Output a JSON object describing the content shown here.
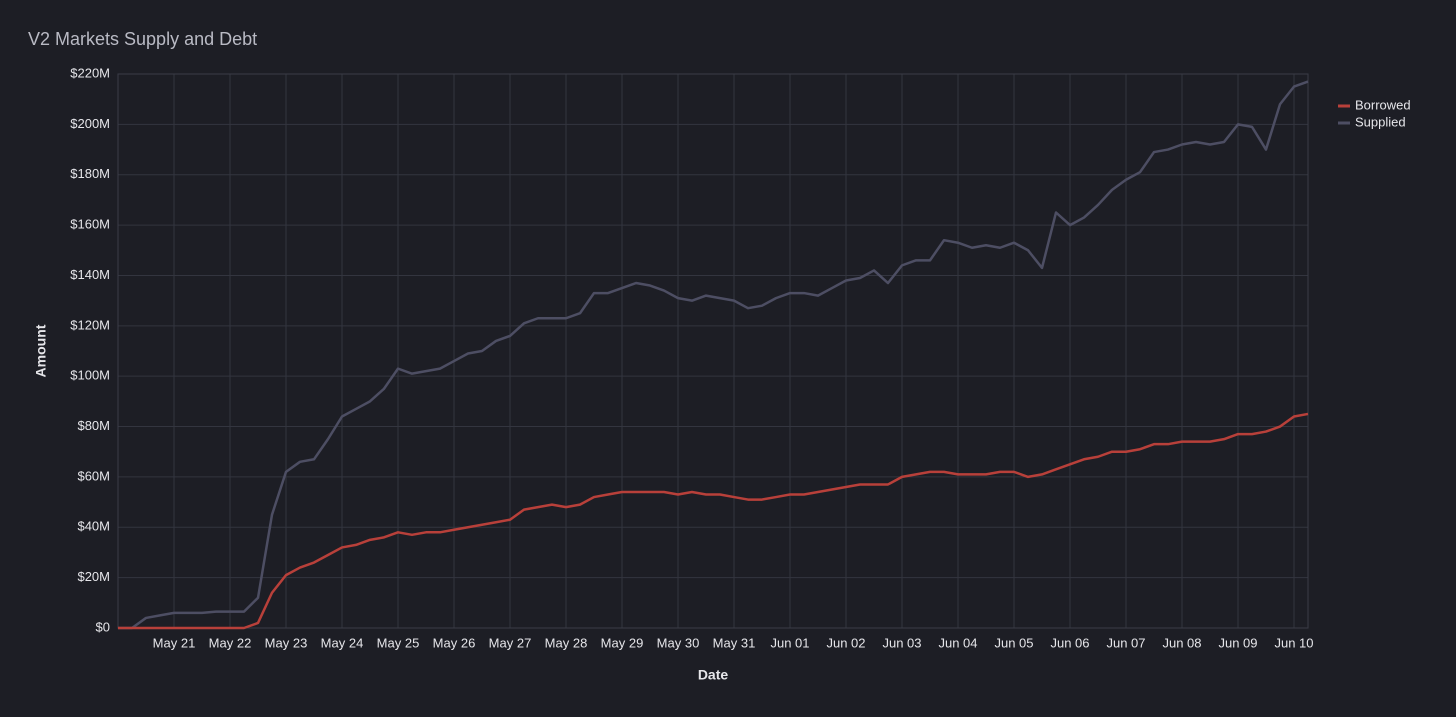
{
  "chart_data": {
    "type": "line",
    "title": "V2 Markets Supply and Debt",
    "x_label": "Date",
    "y_label": "Amount",
    "categories": [
      null,
      null,
      null,
      null,
      "May 21",
      null,
      null,
      null,
      "May 22",
      null,
      null,
      null,
      "May 23",
      null,
      null,
      null,
      "May 24",
      null,
      null,
      null,
      "May 25",
      null,
      null,
      null,
      "May 26",
      null,
      null,
      null,
      "May 27",
      null,
      null,
      null,
      "May 28",
      null,
      null,
      null,
      "May 29",
      null,
      null,
      null,
      "May 30",
      null,
      null,
      null,
      "May 31",
      null,
      null,
      null,
      "Jun 01",
      null,
      null,
      null,
      "Jun 02",
      null,
      null,
      null,
      "Jun 03",
      null,
      null,
      null,
      "Jun 04",
      null,
      null,
      null,
      "Jun 05",
      null,
      null,
      null,
      "Jun 06",
      null,
      null,
      null,
      "Jun 07",
      null,
      null,
      null,
      "Jun 08",
      null,
      null,
      null,
      "Jun 09",
      null,
      null,
      null,
      "Jun 10",
      null
    ],
    "series": [
      {
        "name": "Borrowed",
        "color": "#b8403a",
        "values": [
          0,
          0,
          0,
          0,
          0,
          0,
          0,
          0,
          0,
          0,
          2,
          14,
          21,
          24,
          26,
          29,
          32,
          33,
          35,
          36,
          38,
          37,
          38,
          38,
          39,
          40,
          41,
          42,
          43,
          47,
          48,
          49,
          48,
          49,
          52,
          53,
          54,
          54,
          54,
          54,
          53,
          54,
          53,
          53,
          52,
          51,
          51,
          52,
          53,
          53,
          54,
          55,
          56,
          57,
          57,
          57,
          60,
          61,
          62,
          62,
          61,
          61,
          61,
          62,
          62,
          60,
          61,
          63,
          65,
          67,
          68,
          70,
          70,
          71,
          73,
          73,
          74,
          74,
          74,
          75,
          77,
          77,
          78,
          80,
          84,
          85
        ]
      },
      {
        "name": "Supplied",
        "color": "#4d4e63",
        "values": [
          0,
          0,
          4,
          5,
          6,
          6,
          6,
          6.5,
          6.5,
          6.5,
          12,
          45,
          62,
          66,
          67,
          75,
          84,
          87,
          90,
          95,
          103,
          101,
          102,
          103,
          106,
          109,
          110,
          114,
          116,
          121,
          123,
          123,
          123,
          125,
          133,
          133,
          135,
          137,
          136,
          134,
          131,
          130,
          132,
          131,
          130,
          127,
          128,
          131,
          133,
          133,
          132,
          135,
          138,
          139,
          142,
          137,
          144,
          146,
          146,
          154,
          153,
          151,
          152,
          151,
          153,
          150,
          143,
          165,
          160,
          163,
          168,
          174,
          178,
          181,
          189,
          190,
          192,
          193,
          192,
          193,
          200,
          199,
          190,
          208,
          215,
          217
        ]
      }
    ],
    "ylim": [
      0,
      220
    ],
    "yticks": [
      {
        "value": 0,
        "label": "$0"
      },
      {
        "value": 20,
        "label": "$20M"
      },
      {
        "value": 40,
        "label": "$40M"
      },
      {
        "value": 60,
        "label": "$60M"
      },
      {
        "value": 80,
        "label": "$80M"
      },
      {
        "value": 100,
        "label": "$100M"
      },
      {
        "value": 120,
        "label": "$120M"
      },
      {
        "value": 140,
        "label": "$140M"
      },
      {
        "value": 160,
        "label": "$160M"
      },
      {
        "value": 180,
        "label": "$180M"
      },
      {
        "value": 200,
        "label": "$200M"
      },
      {
        "value": 220,
        "label": "$220M"
      }
    ],
    "grid": true,
    "legend": "top-right"
  }
}
